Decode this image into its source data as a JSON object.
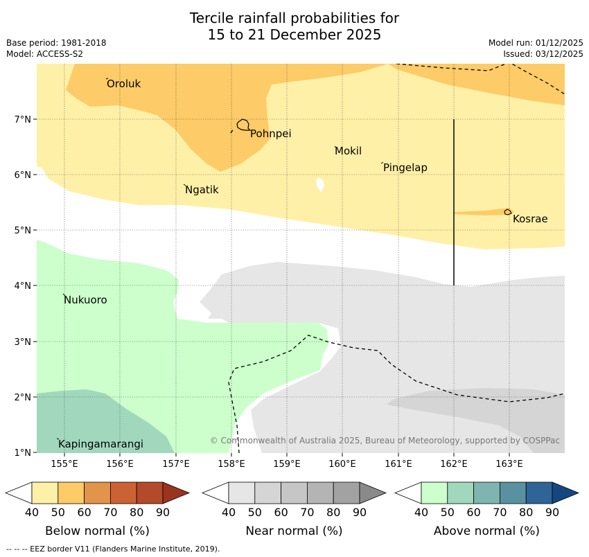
{
  "title_line1": "Tercile rainfall probabilities for",
  "title_line2": "15 to 21 December 2025",
  "meta": {
    "base_period": "Base period: 1981-2018",
    "model": "Model: ACCESS-S2",
    "model_run": "Model run: 01/12/2025",
    "issued": "Issued: 03/12/2025"
  },
  "map": {
    "lat_labels": [
      "7°N",
      "6°N",
      "5°N",
      "4°N",
      "3°N",
      "2°N",
      "1°N"
    ],
    "lon_labels": [
      "155°E",
      "156°E",
      "157°E",
      "158°E",
      "159°E",
      "160°E",
      "161°E",
      "162°E",
      "163°E"
    ],
    "places": {
      "oroluk": "Oroluk",
      "pohnpei": "Pohnpei",
      "mokil": "Mokil",
      "pingelap": "Pingelap",
      "ngatik": "Ngatik",
      "kosrae": "Kosrae",
      "nukuoro": "Nukuoro",
      "kapingamarangi": "Kapingamarangi"
    },
    "copyright": "© Commonwealth of Australia 2025, Bureau of Meteorology, supported by COSPPac"
  },
  "legends": {
    "ticks": [
      "40",
      "50",
      "60",
      "70",
      "80",
      "90"
    ],
    "below": {
      "label": "Below normal (%)",
      "colors": [
        "#fff0a8",
        "#fdcb67",
        "#e2944a",
        "#cc6233",
        "#b44a2a",
        "#9a3320"
      ]
    },
    "near": {
      "label": "Near normal (%)",
      "colors": [
        "#e6e6e6",
        "#d5d5d5",
        "#c6c6c6",
        "#b4b4b4",
        "#a2a2a2",
        "#8a8a8a"
      ]
    },
    "above": {
      "label": "Above normal (%)",
      "colors": [
        "#ccffcc",
        "#a1d8bd",
        "#7fb5b1",
        "#5a91a0",
        "#2e6497",
        "#15477f"
      ]
    }
  },
  "eez_note": "--  --  -- EEZ border V11 (Flanders Marine Institute, 2019)."
}
